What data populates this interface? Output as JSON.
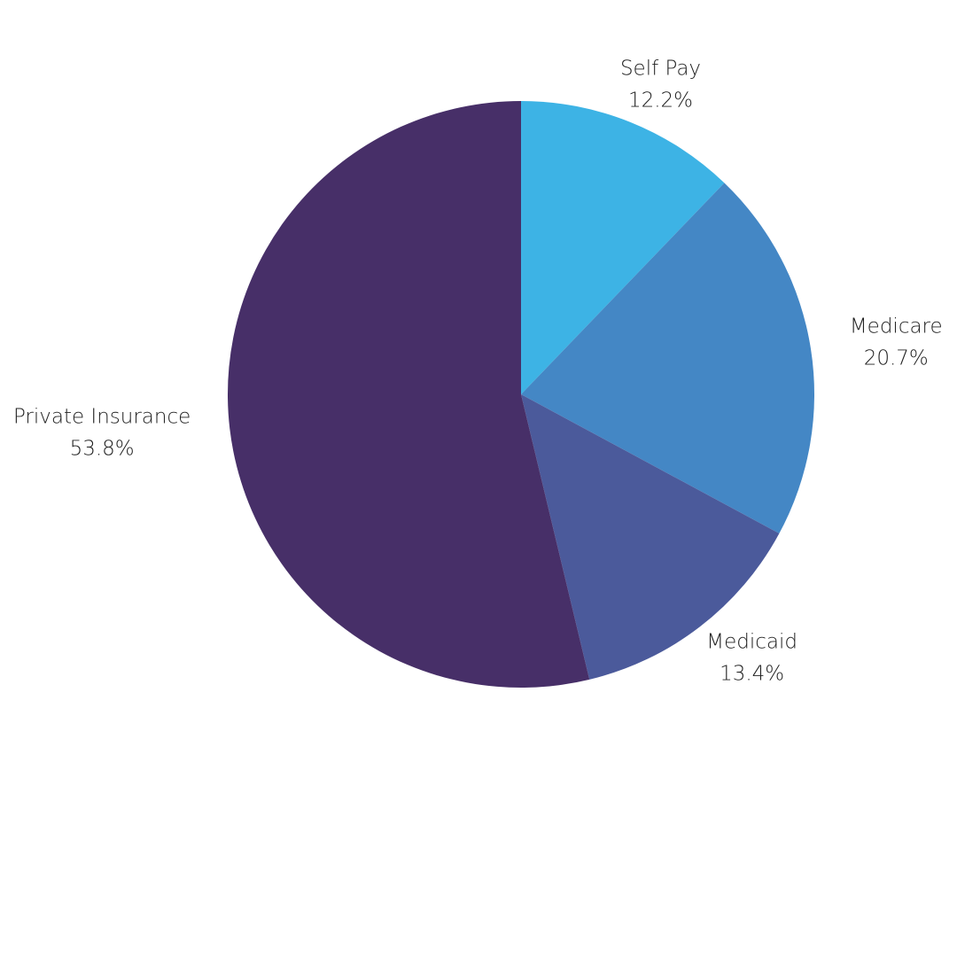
{
  "chart_data": {
    "type": "pie",
    "categories": [
      "Self Pay",
      "Medicare",
      "Medicaid",
      "Private Insurance"
    ],
    "values": [
      12.2,
      20.7,
      13.4,
      53.8
    ],
    "value_labels": [
      "12.2%",
      "20.7%",
      "13.4%",
      "53.8%"
    ],
    "colors": [
      "#3db3e5",
      "#4487c5",
      "#4b5a9b",
      "#472f68"
    ]
  }
}
